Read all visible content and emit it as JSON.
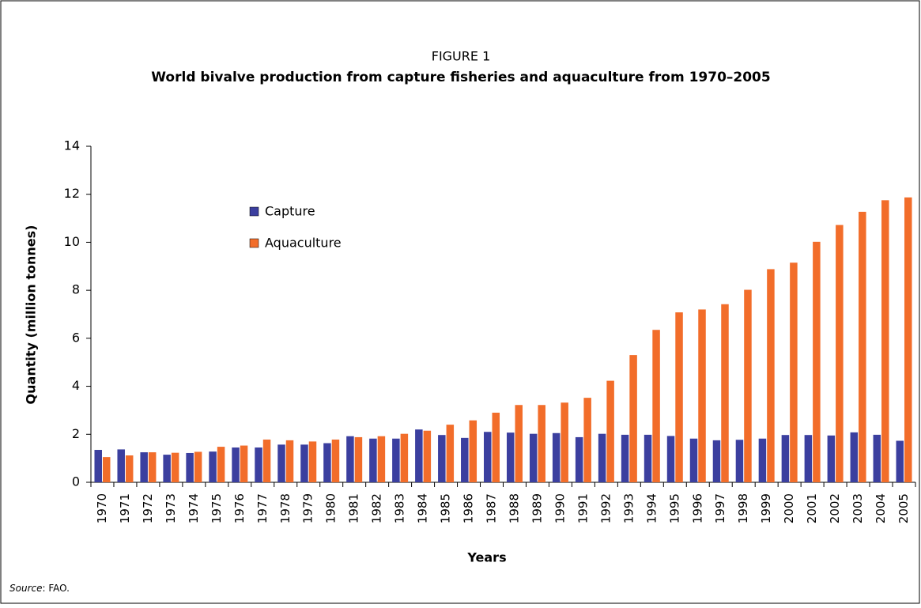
{
  "chart_data": {
    "type": "bar",
    "figure_label": "FIGURE 1",
    "title": "World bivalve production from capture fisheries and aquaculture from 1970–2005",
    "y_label": "Quantity (million tonnes)",
    "x_label": "Years",
    "source_label": "Source",
    "source_text": ": FAO.",
    "categories": [
      "1970",
      "1971",
      "1972",
      "1973",
      "1974",
      "1975",
      "1976",
      "1977",
      "1978",
      "1979",
      "1980",
      "1981",
      "1982",
      "1983",
      "1984",
      "1985",
      "1986",
      "1987",
      "1988",
      "1989",
      "1990",
      "1991",
      "1992",
      "1993",
      "1994",
      "1995",
      "1996",
      "1997",
      "1998",
      "1999",
      "2000",
      "2001",
      "2002",
      "2003",
      "2004",
      "2005"
    ],
    "series": [
      {
        "name": "Capture",
        "color": "#3b3f9f",
        "values": [
          1.35,
          1.37,
          1.25,
          1.15,
          1.22,
          1.28,
          1.45,
          1.45,
          1.57,
          1.57,
          1.63,
          1.92,
          1.82,
          1.82,
          2.2,
          1.97,
          1.85,
          2.1,
          2.07,
          2.02,
          2.05,
          1.88,
          2.02,
          1.98,
          1.98,
          1.93,
          1.82,
          1.75,
          1.77,
          1.82,
          1.97,
          1.97,
          1.95,
          2.08,
          1.98,
          1.73
        ]
      },
      {
        "name": "Aquaculture",
        "color": "#f26d2a",
        "values": [
          1.05,
          1.12,
          1.25,
          1.23,
          1.27,
          1.48,
          1.53,
          1.78,
          1.75,
          1.7,
          1.78,
          1.88,
          1.92,
          2.02,
          2.15,
          2.4,
          2.58,
          2.9,
          3.22,
          3.22,
          3.32,
          3.52,
          4.23,
          5.3,
          6.35,
          7.08,
          7.2,
          7.42,
          8.02,
          8.88,
          9.15,
          10.02,
          10.72,
          11.27,
          11.75,
          11.87
        ]
      }
    ],
    "ylim": [
      0,
      14
    ],
    "yticks": [
      0,
      2,
      4,
      6,
      8,
      10,
      12,
      14
    ],
    "grid": false,
    "legend": "upper-left"
  }
}
